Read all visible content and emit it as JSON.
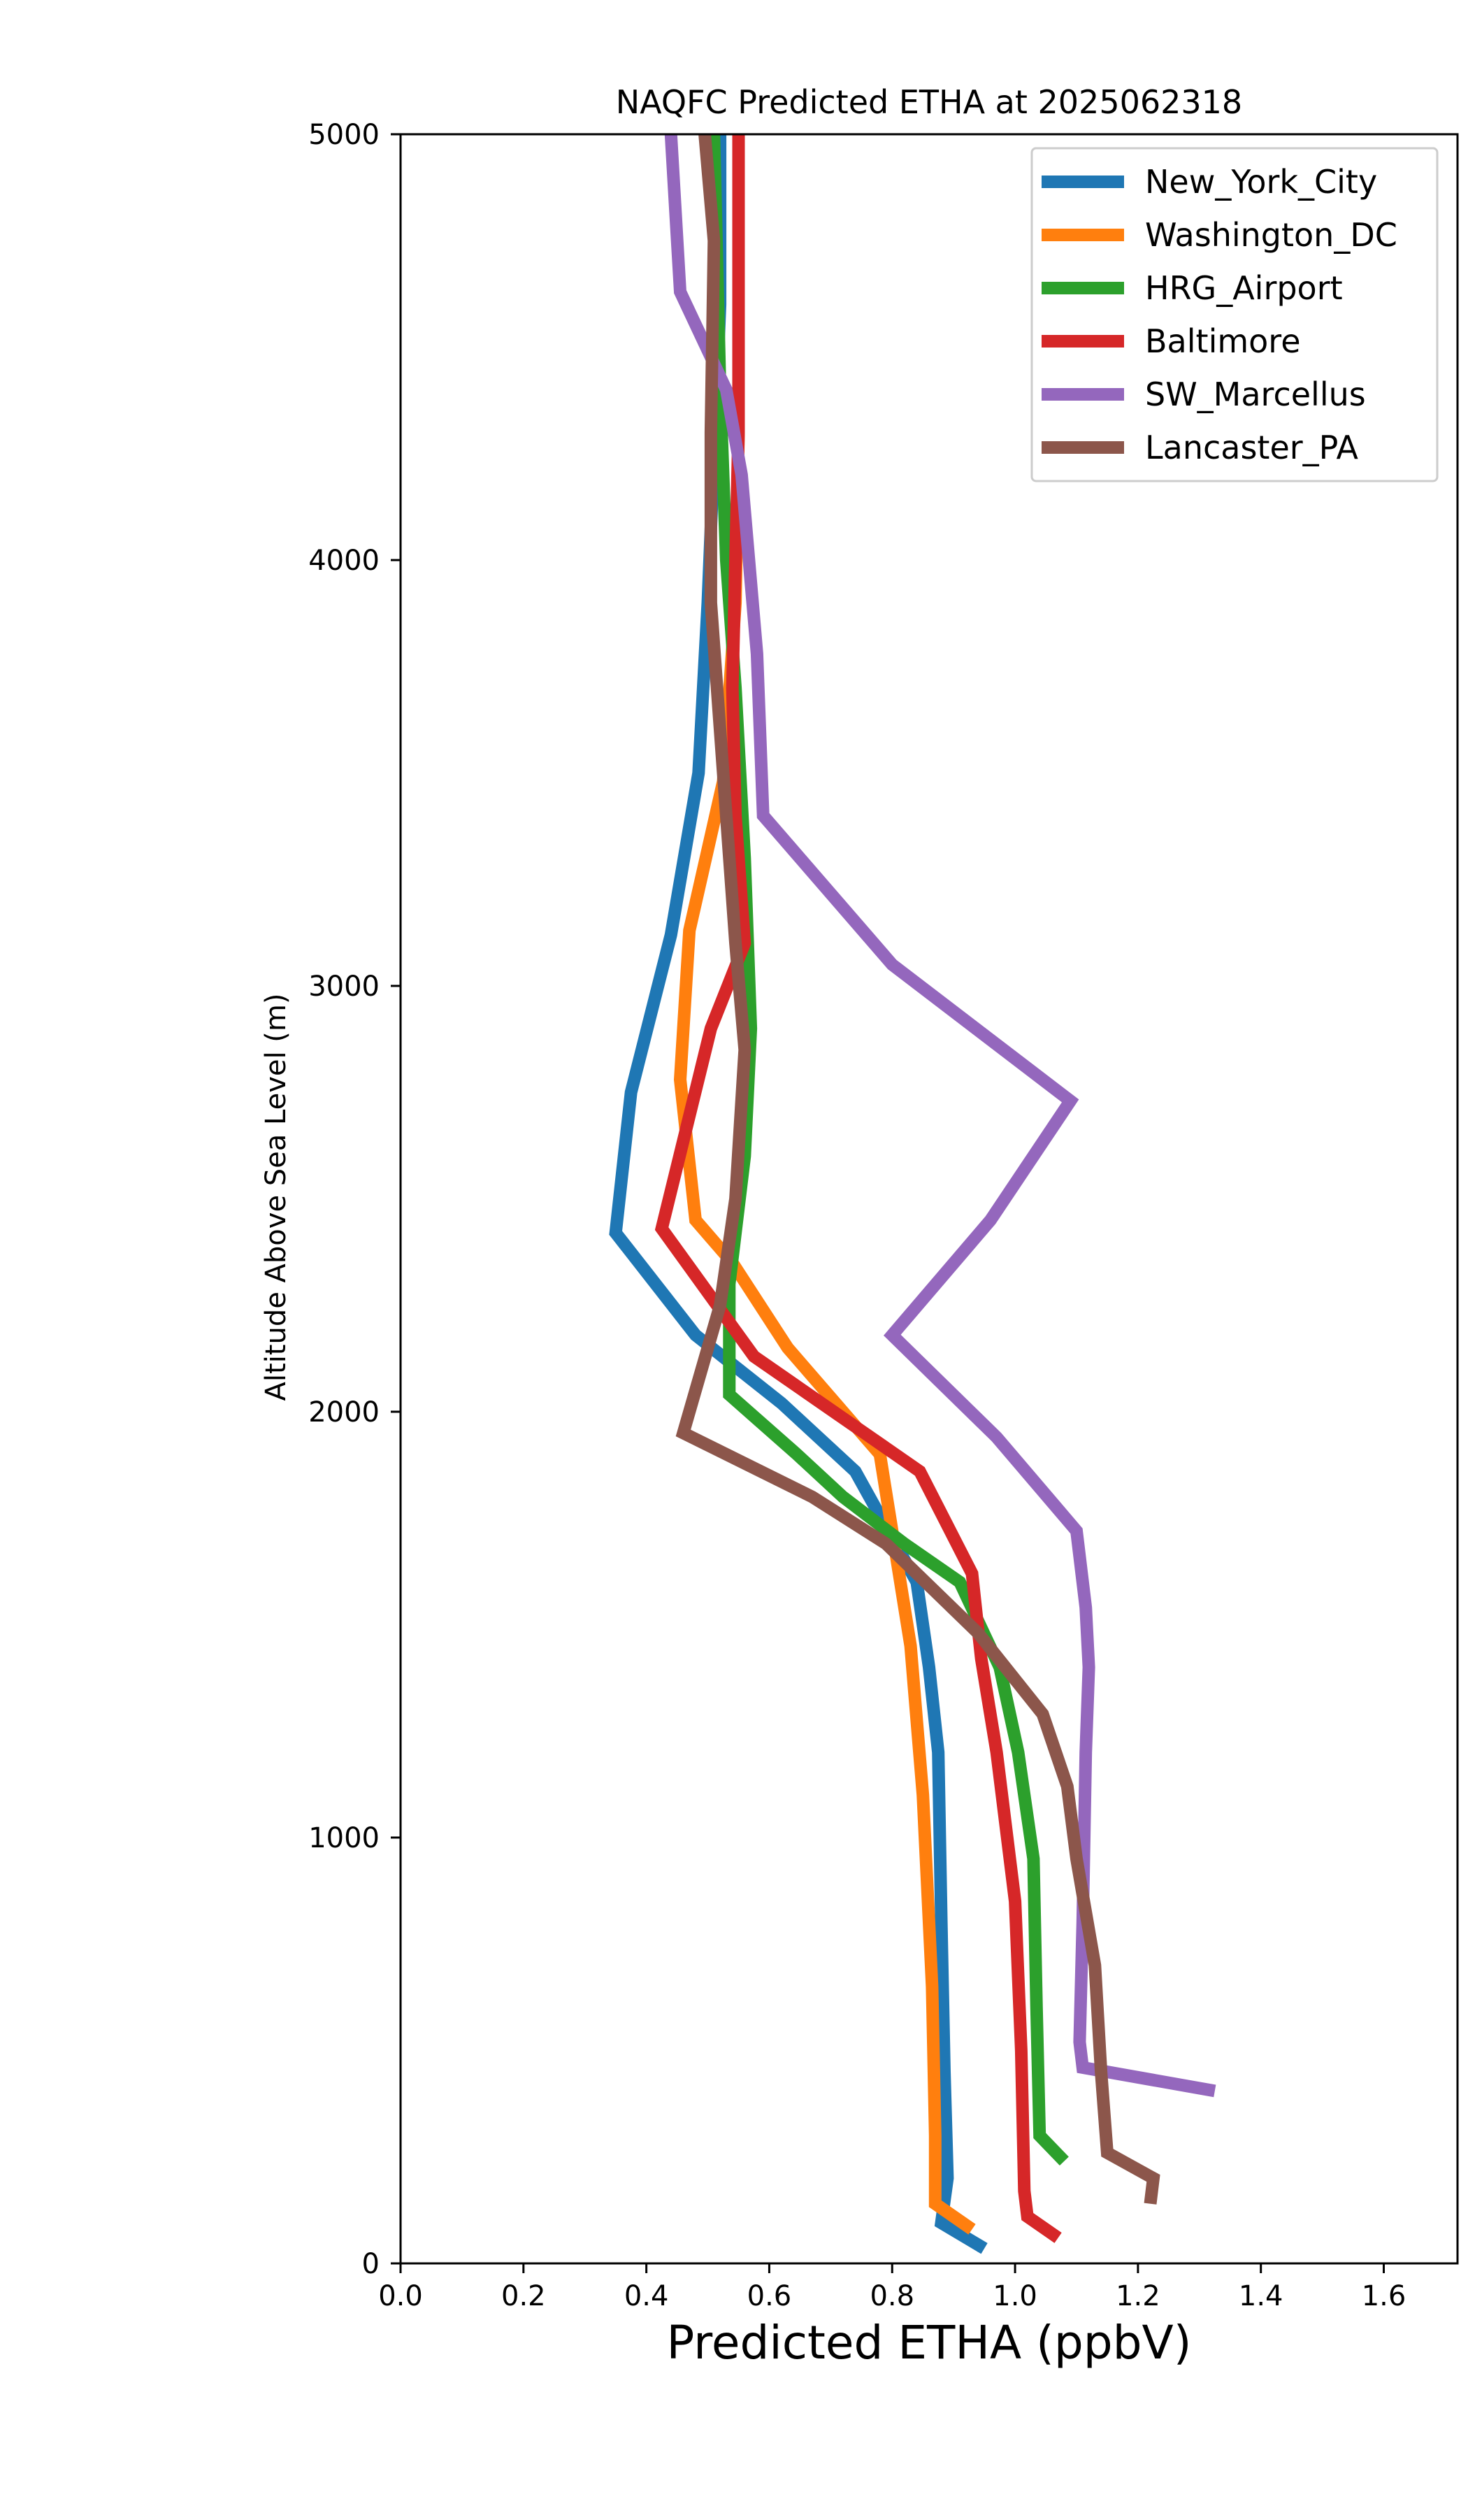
{
  "chart_data": {
    "type": "line",
    "title": "NAQFC Predicted ETHA at 2025062318",
    "xlabel": "Predicted ETHA (ppbV)",
    "ylabel": "Altitude Above Sea Level (m)",
    "xlim": [
      0.0,
      1.72
    ],
    "ylim": [
      0,
      5000
    ],
    "xticks": [
      "0.0",
      "0.2",
      "0.4",
      "0.6",
      "0.8",
      "1.0",
      "1.2",
      "1.4",
      "1.6"
    ],
    "yticks": [
      "0",
      "1000",
      "2000",
      "3000",
      "4000",
      "5000"
    ],
    "legend_position": "top-right",
    "grid": false,
    "series": [
      {
        "name": "New_York_City",
        "color": "#1f77b4",
        "points": [
          [
            0.95,
            35
          ],
          [
            0.88,
            95
          ],
          [
            0.89,
            200
          ],
          [
            0.885,
            450
          ],
          [
            0.88,
            800
          ],
          [
            0.875,
            1200
          ],
          [
            0.86,
            1400
          ],
          [
            0.84,
            1600
          ],
          [
            0.74,
            1860
          ],
          [
            0.62,
            2020
          ],
          [
            0.48,
            2180
          ],
          [
            0.35,
            2420
          ],
          [
            0.375,
            2750
          ],
          [
            0.44,
            3120
          ],
          [
            0.485,
            3500
          ],
          [
            0.5,
            3900
          ],
          [
            0.51,
            4250
          ],
          [
            0.52,
            4600
          ],
          [
            0.52,
            5000
          ]
        ]
      },
      {
        "name": "Washington_DC",
        "color": "#ff7f0e",
        "points": [
          [
            0.93,
            80
          ],
          [
            0.87,
            140
          ],
          [
            0.87,
            300
          ],
          [
            0.865,
            650
          ],
          [
            0.85,
            1100
          ],
          [
            0.83,
            1450
          ],
          [
            0.78,
            1900
          ],
          [
            0.63,
            2150
          ],
          [
            0.54,
            2350
          ],
          [
            0.48,
            2450
          ],
          [
            0.455,
            2780
          ],
          [
            0.47,
            3130
          ],
          [
            0.525,
            3480
          ],
          [
            0.545,
            3900
          ],
          [
            0.55,
            4300
          ],
          [
            0.55,
            5000
          ]
        ]
      },
      {
        "name": "HRG_Airport",
        "color": "#2ca02c",
        "points": [
          [
            1.08,
            240
          ],
          [
            1.04,
            300
          ],
          [
            1.035,
            600
          ],
          [
            1.03,
            950
          ],
          [
            1.005,
            1200
          ],
          [
            0.975,
            1400
          ],
          [
            0.91,
            1600
          ],
          [
            0.82,
            1690
          ],
          [
            0.72,
            1800
          ],
          [
            0.645,
            1900
          ],
          [
            0.535,
            2040
          ],
          [
            0.535,
            2300
          ],
          [
            0.56,
            2600
          ],
          [
            0.57,
            2900
          ],
          [
            0.56,
            3300
          ],
          [
            0.545,
            3700
          ],
          [
            0.53,
            4000
          ],
          [
            0.52,
            4400
          ],
          [
            0.51,
            5000
          ]
        ]
      },
      {
        "name": "Baltimore",
        "color": "#d62728",
        "points": [
          [
            1.07,
            60
          ],
          [
            1.02,
            110
          ],
          [
            1.015,
            170
          ],
          [
            1.01,
            500
          ],
          [
            1.0,
            850
          ],
          [
            0.97,
            1200
          ],
          [
            0.945,
            1420
          ],
          [
            0.93,
            1620
          ],
          [
            0.845,
            1860
          ],
          [
            0.745,
            1960
          ],
          [
            0.575,
            2130
          ],
          [
            0.425,
            2430
          ],
          [
            0.505,
            2900
          ],
          [
            0.56,
            3100
          ],
          [
            0.545,
            3400
          ],
          [
            0.54,
            3700
          ],
          [
            0.545,
            4000
          ],
          [
            0.55,
            4300
          ],
          [
            0.55,
            5000
          ]
        ]
      },
      {
        "name": "SW_Marcellus",
        "color": "#9467bd",
        "points": [
          [
            1.325,
            405
          ],
          [
            1.11,
            460
          ],
          [
            1.105,
            520
          ],
          [
            1.11,
            800
          ],
          [
            1.115,
            1200
          ],
          [
            1.12,
            1400
          ],
          [
            1.115,
            1540
          ],
          [
            1.1,
            1720
          ],
          [
            0.97,
            1940
          ],
          [
            0.8,
            2180
          ],
          [
            0.96,
            2450
          ],
          [
            1.09,
            2730
          ],
          [
            0.8,
            3050
          ],
          [
            0.59,
            3400
          ],
          [
            0.58,
            3780
          ],
          [
            0.555,
            4200
          ],
          [
            0.53,
            4400
          ],
          [
            0.455,
            4630
          ],
          [
            0.44,
            5000
          ]
        ]
      },
      {
        "name": "Lancaster_PA",
        "color": "#8c564b",
        "points": [
          [
            1.22,
            140
          ],
          [
            1.225,
            200
          ],
          [
            1.15,
            260
          ],
          [
            1.14,
            450
          ],
          [
            1.13,
            700
          ],
          [
            1.1,
            950
          ],
          [
            1.085,
            1120
          ],
          [
            1.045,
            1290
          ],
          [
            0.94,
            1480
          ],
          [
            0.79,
            1690
          ],
          [
            0.67,
            1800
          ],
          [
            0.46,
            1950
          ],
          [
            0.52,
            2250
          ],
          [
            0.545,
            2500
          ],
          [
            0.56,
            2850
          ],
          [
            0.545,
            3100
          ],
          [
            0.525,
            3500
          ],
          [
            0.505,
            3900
          ],
          [
            0.505,
            4300
          ],
          [
            0.51,
            4750
          ],
          [
            0.495,
            5000
          ]
        ]
      }
    ]
  }
}
